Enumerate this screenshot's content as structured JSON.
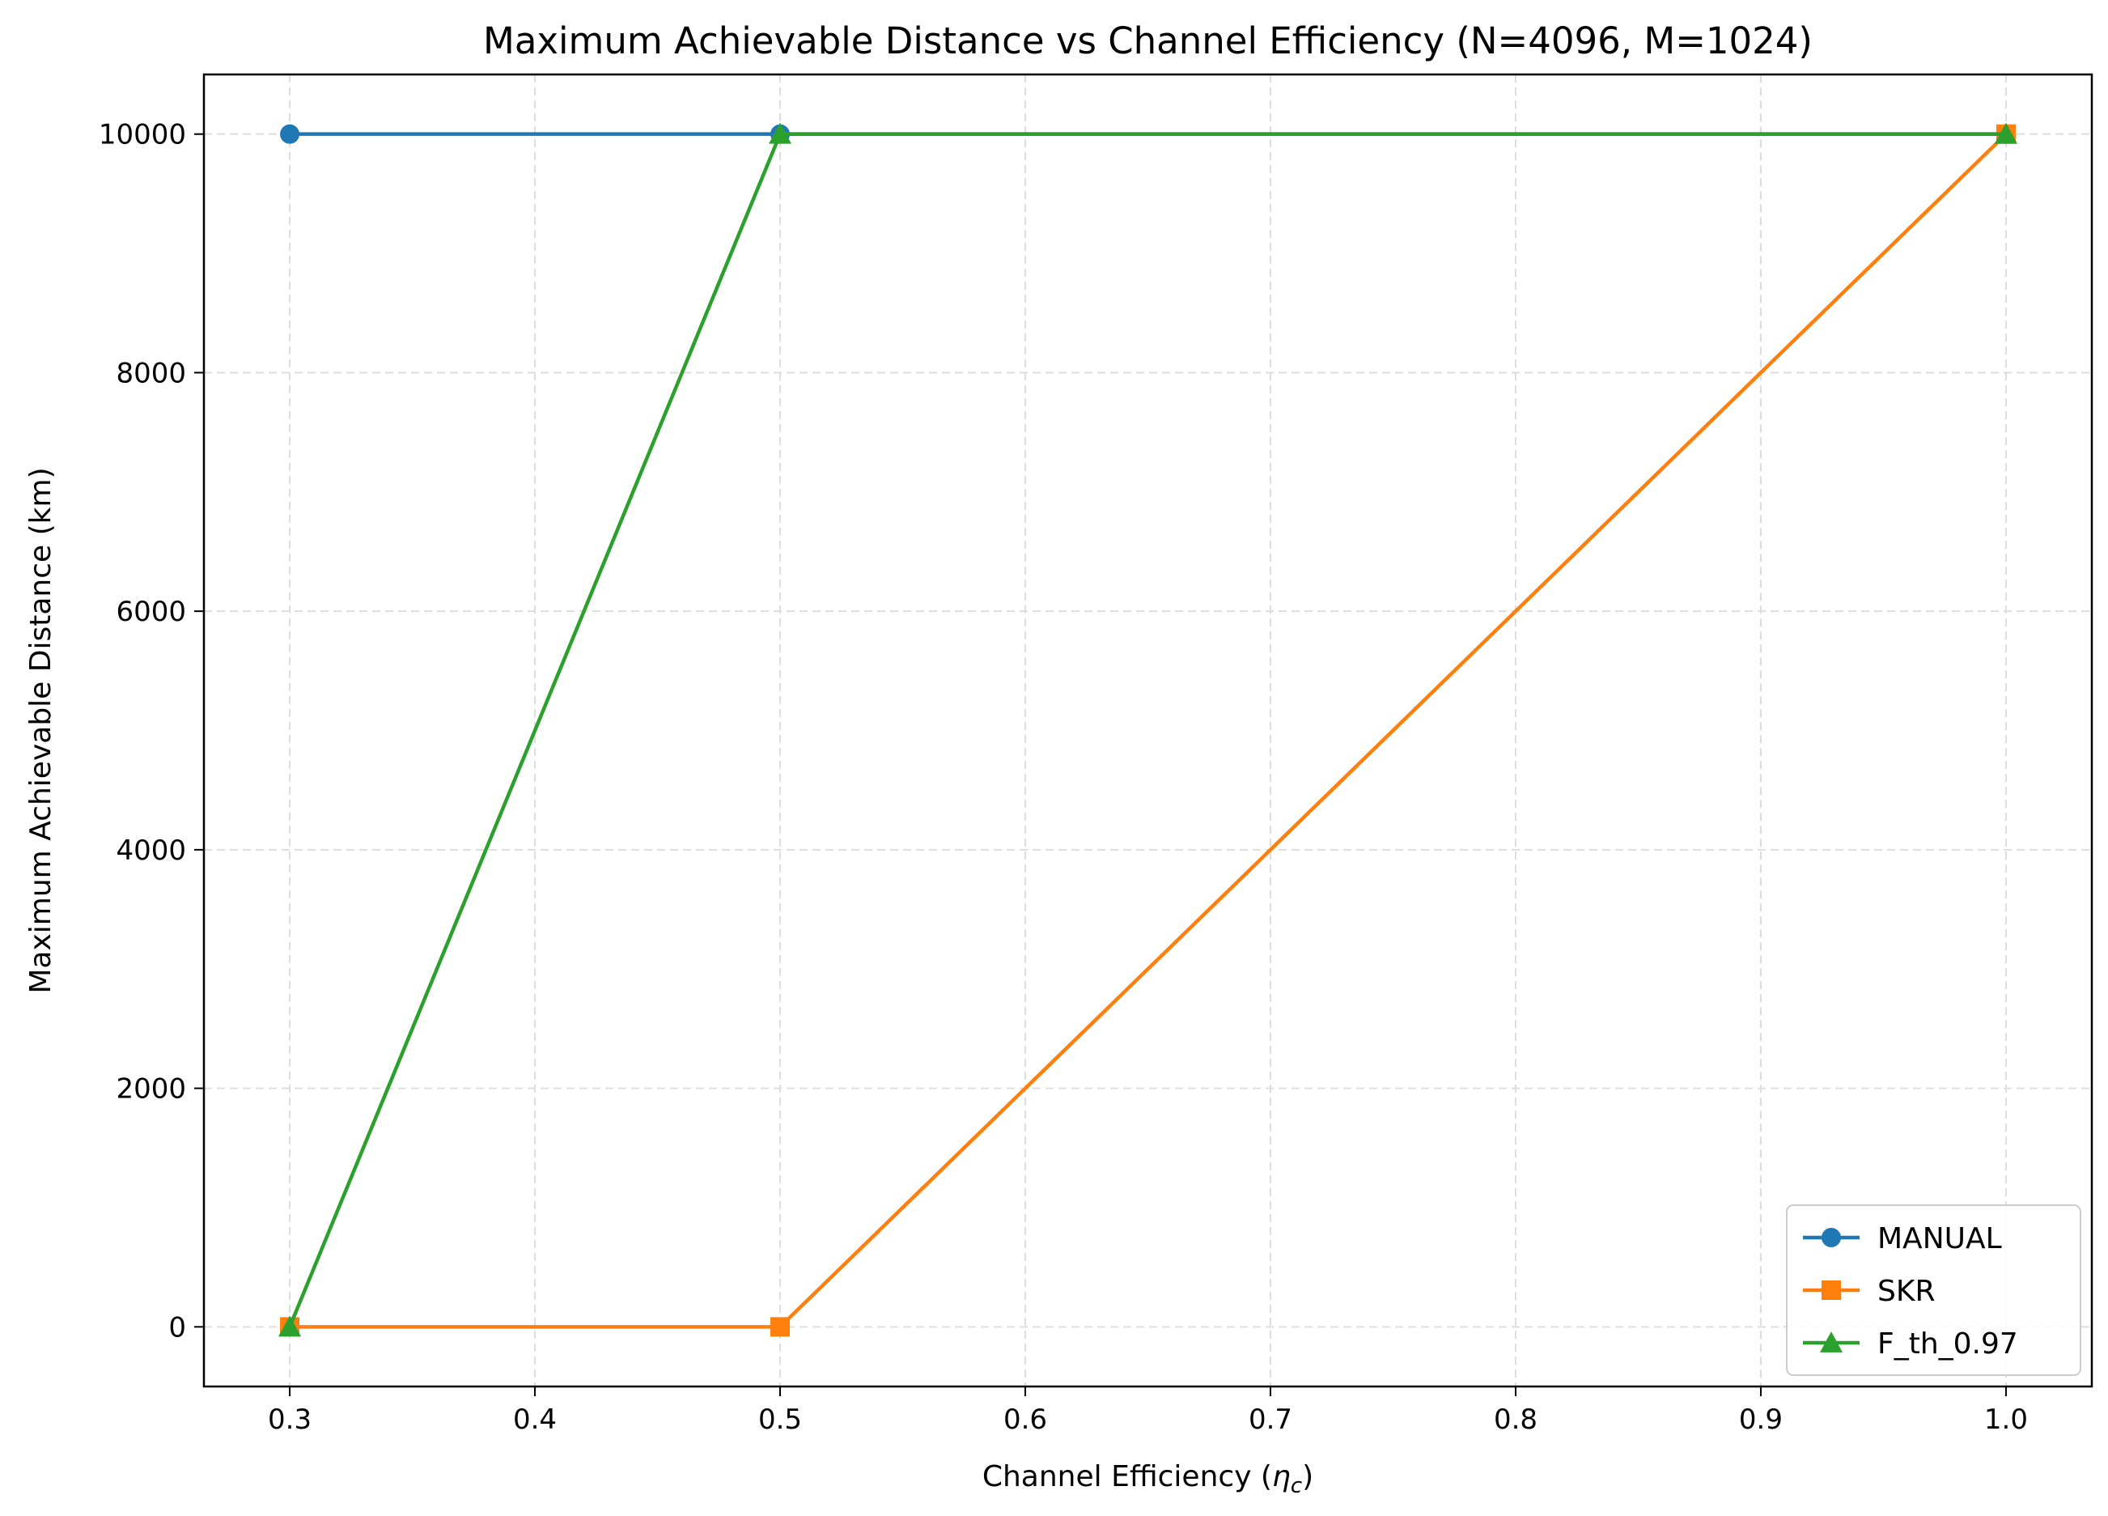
{
  "chart_data": {
    "type": "line",
    "title": "Maximum Achievable Distance vs Channel Efficiency (N=4096, M=1024)",
    "xlabel": "Channel Efficiency (",
    "xlabel_symbol": "η",
    "xlabel_subscript": "c",
    "xlabel_close": ")",
    "ylabel": "Maximum Achievable Distance (km)",
    "x": [
      0.3,
      0.5,
      1.0
    ],
    "xlim": [
      0.265,
      1.035
    ],
    "ylim": [
      -500,
      10500
    ],
    "xticks": [
      0.3,
      0.4,
      0.5,
      0.6,
      0.7,
      0.8,
      0.9,
      1.0
    ],
    "xtick_labels": [
      "0.3",
      "0.4",
      "0.5",
      "0.6",
      "0.7",
      "0.8",
      "0.9",
      "1.0"
    ],
    "yticks": [
      0,
      2000,
      4000,
      6000,
      8000,
      10000
    ],
    "ytick_labels": [
      "0",
      "2000",
      "4000",
      "6000",
      "8000",
      "10000"
    ],
    "grid": true,
    "legend_position": "lower-right",
    "series": [
      {
        "name": "MANUAL",
        "values": [
          10000,
          10000,
          10000
        ],
        "color": "#1f77b4",
        "marker": "circle"
      },
      {
        "name": "SKR",
        "values": [
          0,
          0,
          10000
        ],
        "color": "#ff7f0e",
        "marker": "square"
      },
      {
        "name": "F_th_0.97",
        "values": [
          0,
          10000,
          10000
        ],
        "color": "#2ca02c",
        "marker": "triangle"
      }
    ]
  }
}
